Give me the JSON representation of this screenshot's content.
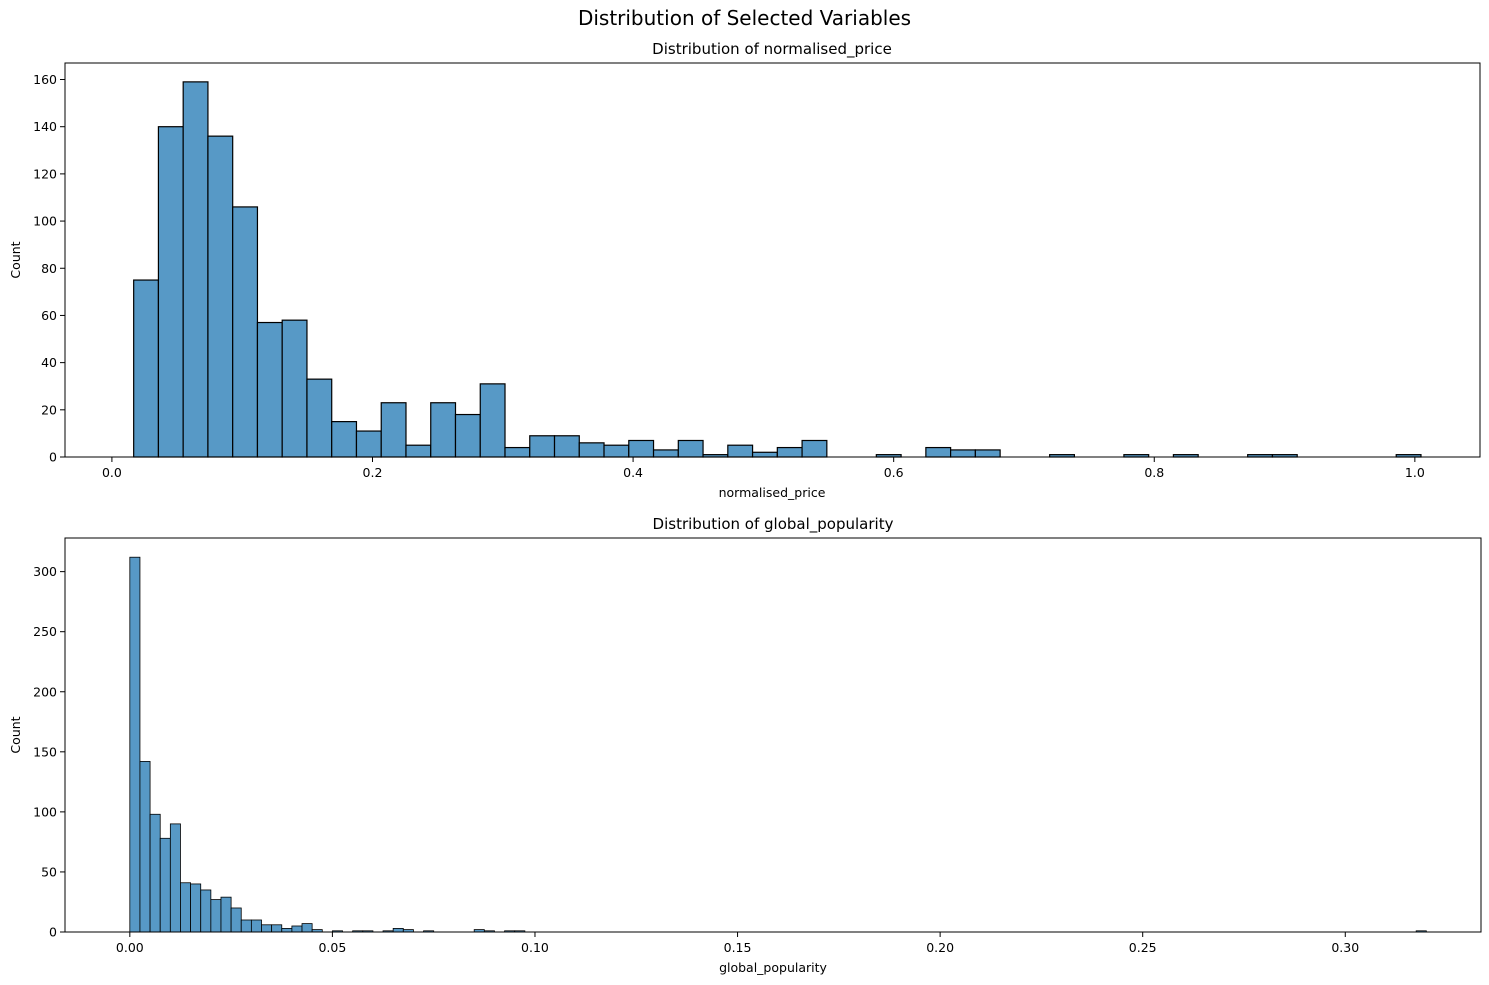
{
  "figure": {
    "suptitle": "Distribution of Selected Variables"
  },
  "colors": {
    "bar_fill": "#5799c6",
    "bar_edge": "#000000",
    "axes": "#000000",
    "background": "#ffffff"
  },
  "chart_data": [
    {
      "type": "bar",
      "subtype": "histogram",
      "title": "Distribution of normalised_price",
      "xlabel": "normalised_price",
      "ylabel": "Count",
      "xlim": [
        -0.036,
        1.05
      ],
      "ylim": [
        0,
        167
      ],
      "xticks": [
        0.0,
        0.2,
        0.4,
        0.6,
        0.8,
        1.0
      ],
      "xtick_labels": [
        "0.0",
        "0.2",
        "0.4",
        "0.6",
        "0.8",
        "1.0"
      ],
      "yticks": [
        0,
        20,
        40,
        60,
        80,
        100,
        120,
        140,
        160
      ],
      "ytick_labels": [
        "0",
        "20",
        "40",
        "60",
        "80",
        "100",
        "120",
        "140",
        "160"
      ],
      "grid": false,
      "legend": "none",
      "bin_start": 0.0167,
      "bin_width": 0.019,
      "counts": [
        75,
        140,
        159,
        136,
        106,
        57,
        58,
        33,
        15,
        11,
        23,
        5,
        23,
        18,
        31,
        4,
        9,
        9,
        6,
        5,
        7,
        3,
        7,
        1,
        5,
        2,
        4,
        7,
        0,
        0,
        1,
        0,
        4,
        3,
        3,
        0,
        0,
        1,
        0,
        0,
        1,
        0,
        1,
        0,
        0,
        1,
        1,
        0,
        0,
        0,
        0,
        1
      ]
    },
    {
      "type": "bar",
      "subtype": "histogram",
      "title": "Distribution of global_popularity",
      "xlabel": "global_popularity",
      "ylabel": "Count",
      "xlim": [
        -0.016,
        0.3335
      ],
      "ylim": [
        0,
        328
      ],
      "xticks": [
        0.0,
        0.05,
        0.1,
        0.15,
        0.2,
        0.25,
        0.3
      ],
      "xtick_labels": [
        "0.00",
        "0.05",
        "0.10",
        "0.15",
        "0.20",
        "0.25",
        "0.30"
      ],
      "yticks": [
        0,
        50,
        100,
        150,
        200,
        250,
        300
      ],
      "ytick_labels": [
        "0",
        "50",
        "100",
        "150",
        "200",
        "250",
        "300"
      ],
      "grid": false,
      "legend": "none",
      "bin_start": 0.0,
      "bin_width": 0.0025,
      "counts": [
        312,
        142,
        98,
        78,
        90,
        41,
        40,
        35,
        27,
        29,
        20,
        10,
        10,
        6,
        6,
        3,
        5,
        7,
        2,
        0,
        1,
        0,
        1,
        1,
        0,
        1,
        3,
        2,
        0,
        1,
        0,
        0,
        0,
        0,
        2,
        1,
        0,
        1,
        1,
        0,
        0,
        0,
        0,
        0,
        0,
        0,
        0,
        0,
        0,
        0,
        0,
        0,
        0,
        0,
        0,
        0,
        0,
        0,
        0,
        0,
        0,
        0,
        0,
        0,
        0,
        0,
        0,
        0,
        0,
        0,
        0,
        0,
        0,
        0,
        0,
        0,
        0,
        0,
        0,
        0,
        0,
        0,
        0,
        0,
        0,
        0,
        0,
        0,
        0,
        0,
        0,
        0,
        0,
        0,
        0,
        0,
        0,
        0,
        0,
        0,
        0,
        0,
        0,
        0,
        0,
        0,
        0,
        0,
        0,
        0,
        0,
        0,
        0,
        0,
        0,
        0,
        0,
        0,
        0,
        0,
        0,
        0,
        0,
        0,
        0,
        0,
        0,
        1
      ]
    }
  ]
}
